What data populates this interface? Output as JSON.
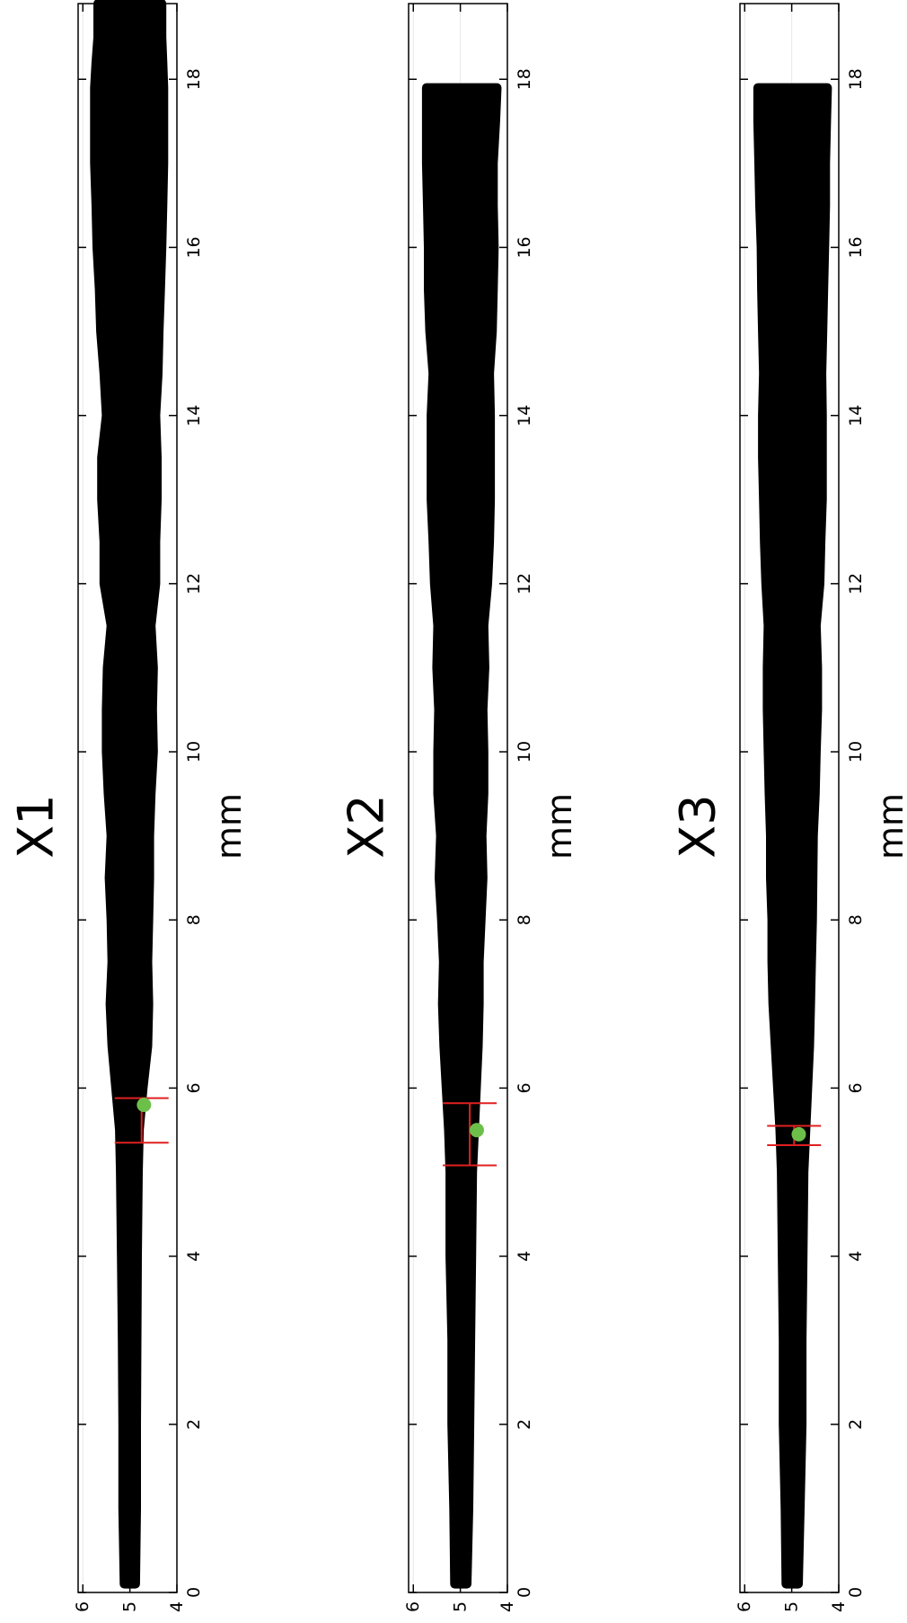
{
  "chart_data": [
    {
      "type": "scatter",
      "title": "X1",
      "xlabel": "mm",
      "ylabel": "",
      "xlim": [
        0,
        18.9
      ],
      "ylim": [
        4,
        6.1
      ],
      "xticks": [
        "0",
        "2",
        "4",
        "6",
        "8",
        "10",
        "12",
        "14",
        "16",
        "18"
      ],
      "yticks": [
        "4",
        "5",
        "6"
      ],
      "profile": {
        "x": [
          0.1,
          1,
          2,
          3,
          4,
          5,
          5.5,
          6,
          6.5,
          7,
          7.5,
          8,
          8.5,
          9,
          9.5,
          10,
          10.5,
          11,
          11.5,
          12,
          12.5,
          13,
          13.5,
          14,
          14.5,
          15,
          15.5,
          16,
          16.5,
          17,
          17.5,
          17.9,
          18.2,
          18.5,
          18.9
        ],
        "top": [
          5.12,
          5.15,
          5.15,
          5.16,
          5.18,
          5.2,
          5.22,
          5.3,
          5.38,
          5.42,
          5.38,
          5.4,
          5.44,
          5.4,
          5.46,
          5.5,
          5.5,
          5.48,
          5.4,
          5.55,
          5.55,
          5.6,
          5.6,
          5.5,
          5.55,
          5.62,
          5.65,
          5.7,
          5.72,
          5.75,
          5.75,
          5.75,
          5.72,
          5.68,
          5.68
        ],
        "bottom": [
          4.88,
          4.86,
          4.86,
          4.85,
          4.84,
          4.82,
          4.8,
          4.72,
          4.62,
          4.6,
          4.62,
          4.6,
          4.58,
          4.58,
          4.55,
          4.5,
          4.52,
          4.5,
          4.55,
          4.45,
          4.45,
          4.42,
          4.42,
          4.45,
          4.4,
          4.38,
          4.35,
          4.32,
          4.3,
          4.28,
          4.28,
          4.28,
          4.3,
          4.32,
          4.32
        ]
      },
      "highlight_point": {
        "x": 5.8,
        "y": 4.7
      },
      "error_bar": {
        "y": 4.75,
        "x_low": 5.35,
        "x_high": 5.88
      }
    },
    {
      "type": "scatter",
      "title": "X2",
      "xlabel": "mm",
      "ylabel": "",
      "xlim": [
        0,
        18.9
      ],
      "ylim": [
        4,
        6.1
      ],
      "xticks": [
        "0",
        "2",
        "4",
        "6",
        "8",
        "10",
        "12",
        "14",
        "16",
        "18"
      ],
      "yticks": [
        "4",
        "5",
        "6"
      ],
      "profile": {
        "x": [
          0.1,
          1,
          2,
          3,
          4,
          5,
          5.5,
          6,
          6.5,
          7,
          7.5,
          8,
          8.5,
          9,
          9.5,
          10,
          10.5,
          11,
          11.5,
          12,
          12.5,
          13,
          13.5,
          14,
          14.5,
          15,
          15.5,
          16,
          16.5,
          17,
          17.5,
          17.9
        ],
        "top": [
          5.12,
          5.14,
          5.18,
          5.18,
          5.22,
          5.22,
          5.25,
          5.3,
          5.35,
          5.38,
          5.36,
          5.4,
          5.45,
          5.42,
          5.48,
          5.48,
          5.46,
          5.5,
          5.48,
          5.55,
          5.58,
          5.62,
          5.62,
          5.62,
          5.58,
          5.65,
          5.68,
          5.68,
          5.7,
          5.72,
          5.72,
          5.72
        ],
        "bottom": [
          4.86,
          4.82,
          4.8,
          4.78,
          4.76,
          4.74,
          4.7,
          4.66,
          4.62,
          4.6,
          4.6,
          4.56,
          4.52,
          4.54,
          4.5,
          4.5,
          4.52,
          4.48,
          4.5,
          4.42,
          4.38,
          4.36,
          4.36,
          4.36,
          4.38,
          4.32,
          4.3,
          4.28,
          4.3,
          4.3,
          4.25,
          4.22
        ]
      },
      "highlight_point": {
        "x": 5.5,
        "y": 4.65
      },
      "error_bar": {
        "y": 4.8,
        "x_low": 5.08,
        "x_high": 5.82
      }
    },
    {
      "type": "scatter",
      "title": "X3",
      "xlabel": "mm",
      "ylabel": "",
      "xlim": [
        0,
        18.9
      ],
      "ylim": [
        4,
        6.1
      ],
      "xticks": [
        "0",
        "2",
        "4",
        "6",
        "8",
        "10",
        "12",
        "14",
        "16",
        "18"
      ],
      "yticks": [
        "4",
        "5",
        "6"
      ],
      "profile": {
        "x": [
          0.1,
          1,
          2,
          3,
          4,
          5,
          5.5,
          6,
          6.5,
          7,
          7.5,
          8,
          8.5,
          9,
          9.5,
          10,
          10.5,
          11,
          11.5,
          12,
          12.5,
          13,
          13.5,
          14,
          14.5,
          15,
          15.5,
          16,
          16.5,
          17,
          17.5,
          17.9
        ],
        "top": [
          5.12,
          5.14,
          5.18,
          5.18,
          5.2,
          5.22,
          5.25,
          5.3,
          5.35,
          5.4,
          5.42,
          5.42,
          5.45,
          5.45,
          5.48,
          5.5,
          5.52,
          5.52,
          5.5,
          5.55,
          5.58,
          5.6,
          5.62,
          5.62,
          5.6,
          5.62,
          5.64,
          5.65,
          5.68,
          5.7,
          5.72,
          5.72
        ],
        "bottom": [
          4.86,
          4.82,
          4.78,
          4.78,
          4.76,
          4.74,
          4.7,
          4.66,
          4.62,
          4.6,
          4.58,
          4.56,
          4.55,
          4.54,
          4.5,
          4.48,
          4.45,
          4.45,
          4.48,
          4.4,
          4.38,
          4.35,
          4.35,
          4.35,
          4.36,
          4.34,
          4.32,
          4.3,
          4.28,
          4.28,
          4.26,
          4.24
        ]
      },
      "highlight_point": {
        "x": 5.45,
        "y": 4.85
      },
      "error_bar": {
        "y": 4.95,
        "x_low": 5.32,
        "x_high": 5.55
      }
    }
  ],
  "colors": {
    "profile": "#000000",
    "highlight_point": "#6cc04a",
    "error_bar": "#e02020",
    "axes": "#000000",
    "grid": "#e8e8e8"
  }
}
